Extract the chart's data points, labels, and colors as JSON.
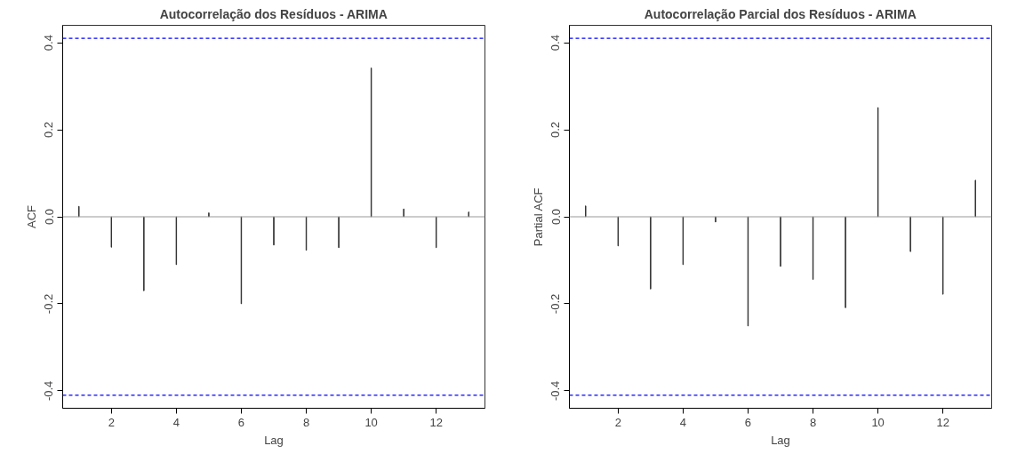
{
  "chart_data": [
    {
      "type": "bar",
      "title": "Autocorrelação dos Resíduos - ARIMA",
      "xlabel": "Lag",
      "ylabel": "ACF",
      "x": [
        1,
        2,
        3,
        4,
        5,
        6,
        7,
        8,
        9,
        10,
        11,
        12,
        13
      ],
      "values": [
        0.024,
        -0.07,
        -0.17,
        -0.11,
        0.009,
        -0.2,
        -0.065,
        -0.077,
        -0.071,
        0.342,
        0.018,
        -0.071,
        0.011
      ],
      "color": "#333333",
      "xlim": [
        0.5,
        13.5
      ],
      "ylim": [
        -0.44,
        0.44
      ],
      "xticks": [
        2,
        4,
        6,
        8,
        10,
        12
      ],
      "yticks": [
        {
          "value": -0.4,
          "label": "-0.4"
        },
        {
          "value": -0.2,
          "label": "-0.2"
        },
        {
          "value": 0,
          "label": "0.0"
        },
        {
          "value": 0.2,
          "label": "0.2"
        },
        {
          "value": 0.4,
          "label": "0.4"
        }
      ],
      "ref_lines": [
        {
          "axis": "y",
          "value": 0.41,
          "color": "#0000ff",
          "line_style": "dashed"
        },
        {
          "axis": "y",
          "value": -0.41,
          "color": "#0000ff",
          "line_style": "dashed"
        },
        {
          "axis": "y",
          "value": 0,
          "color": "#999999",
          "line_style": "solid"
        }
      ]
    },
    {
      "type": "bar",
      "title": "Autocorrelação Parcial dos Resíduos - ARIMA",
      "xlabel": "Lag",
      "ylabel": "Partial ACF",
      "x": [
        1,
        2,
        3,
        4,
        5,
        6,
        7,
        8,
        9,
        10,
        11,
        12,
        13
      ],
      "values": [
        0.025,
        -0.067,
        -0.166,
        -0.11,
        -0.012,
        -0.251,
        -0.114,
        -0.144,
        -0.209,
        0.251,
        -0.08,
        -0.178,
        0.084
      ],
      "color": "#333333",
      "xlim": [
        0.5,
        13.5
      ],
      "ylim": [
        -0.44,
        0.44
      ],
      "xticks": [
        2,
        4,
        6,
        8,
        10,
        12
      ],
      "yticks": [
        {
          "value": -0.4,
          "label": "-0.4"
        },
        {
          "value": -0.2,
          "label": "-0.2"
        },
        {
          "value": 0,
          "label": "0.0"
        },
        {
          "value": 0.2,
          "label": "0.2"
        },
        {
          "value": 0.4,
          "label": "0.4"
        }
      ],
      "ref_lines": [
        {
          "axis": "y",
          "value": 0.41,
          "color": "#0000ff",
          "line_style": "dashed"
        },
        {
          "axis": "y",
          "value": -0.41,
          "color": "#0000ff",
          "line_style": "dashed"
        },
        {
          "axis": "y",
          "value": 0,
          "color": "#999999",
          "line_style": "solid"
        }
      ]
    }
  ]
}
